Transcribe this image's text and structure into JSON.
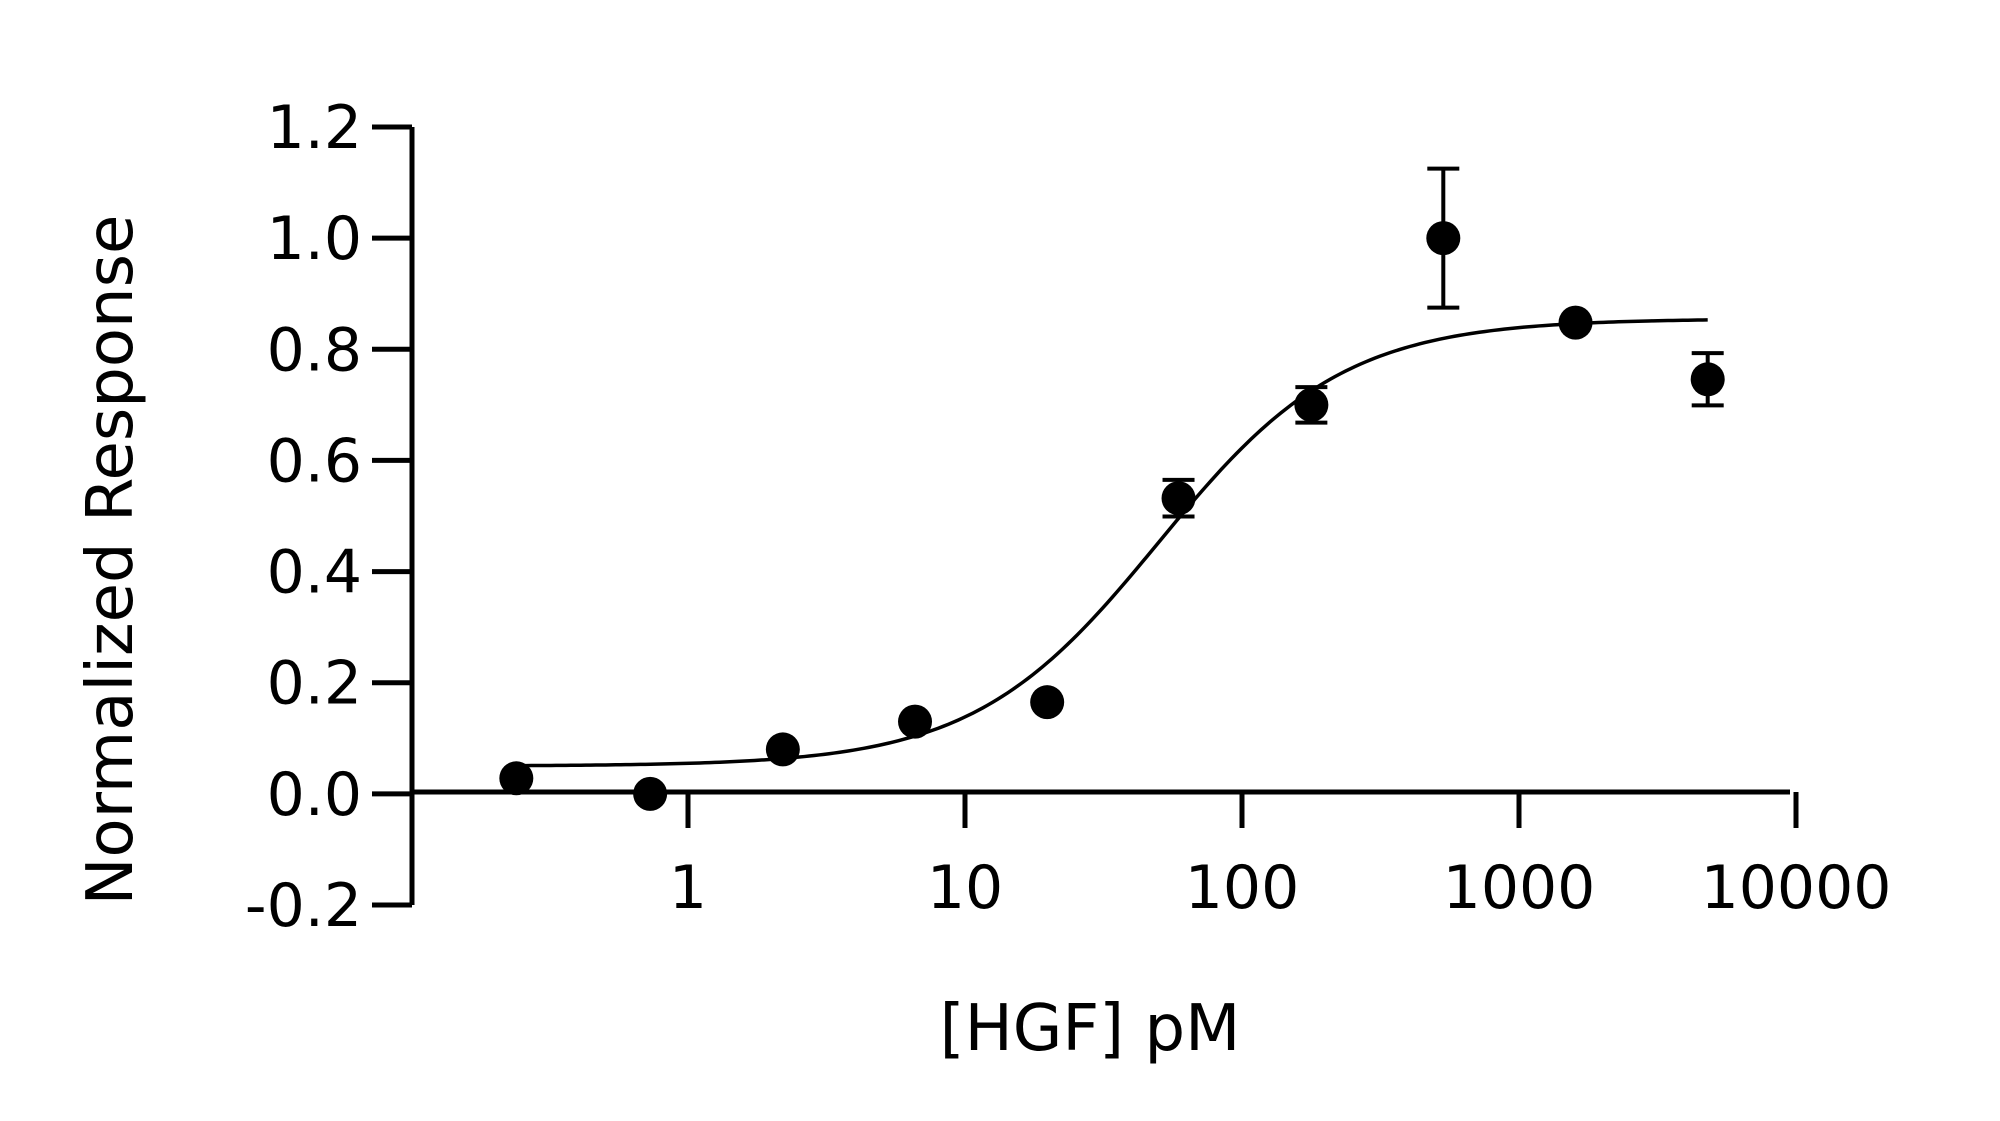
{
  "chart_data": {
    "type": "scatter",
    "title": "",
    "xlabel": "[HGF] pM",
    "ylabel": "Normalized Response",
    "x_scale": "log",
    "xlim": [
      0.1,
      10000
    ],
    "ylim": [
      -0.2,
      1.2
    ],
    "x_ticks": [
      1,
      10,
      100,
      1000,
      10000
    ],
    "x_tick_labels": [
      "1",
      "10",
      "100",
      "1000",
      "10000"
    ],
    "y_ticks": [
      -0.2,
      0.0,
      0.2,
      0.4,
      0.6,
      0.8,
      1.0,
      1.2
    ],
    "y_tick_labels": [
      "-0.2",
      "0.0",
      "0.2",
      "0.4",
      "0.6",
      "0.8",
      "1.0",
      "1.2"
    ],
    "grid": false,
    "points": [
      {
        "x": 0.24,
        "y": 0.028,
        "err": 0
      },
      {
        "x": 0.73,
        "y": 0.0,
        "err": 0
      },
      {
        "x": 2.2,
        "y": 0.08,
        "err": 0
      },
      {
        "x": 6.6,
        "y": 0.13,
        "err": 0
      },
      {
        "x": 19.8,
        "y": 0.165,
        "err": 0
      },
      {
        "x": 59,
        "y": 0.532,
        "err": 0.033
      },
      {
        "x": 178,
        "y": 0.7,
        "err": 0.032
      },
      {
        "x": 533,
        "y": 1.0,
        "err": 0.125
      },
      {
        "x": 1600,
        "y": 0.848,
        "err": 0
      },
      {
        "x": 4800,
        "y": 0.746,
        "err": 0.047
      }
    ],
    "fit": {
      "type": "four-parameter-logistic",
      "bottom": 0.05,
      "top": 0.855,
      "ec50": 50,
      "hill": 1.3,
      "x_range": [
        0.24,
        4800
      ]
    },
    "colors": {
      "marker": "#000000",
      "line": "#000000",
      "axis": "#000000"
    }
  }
}
